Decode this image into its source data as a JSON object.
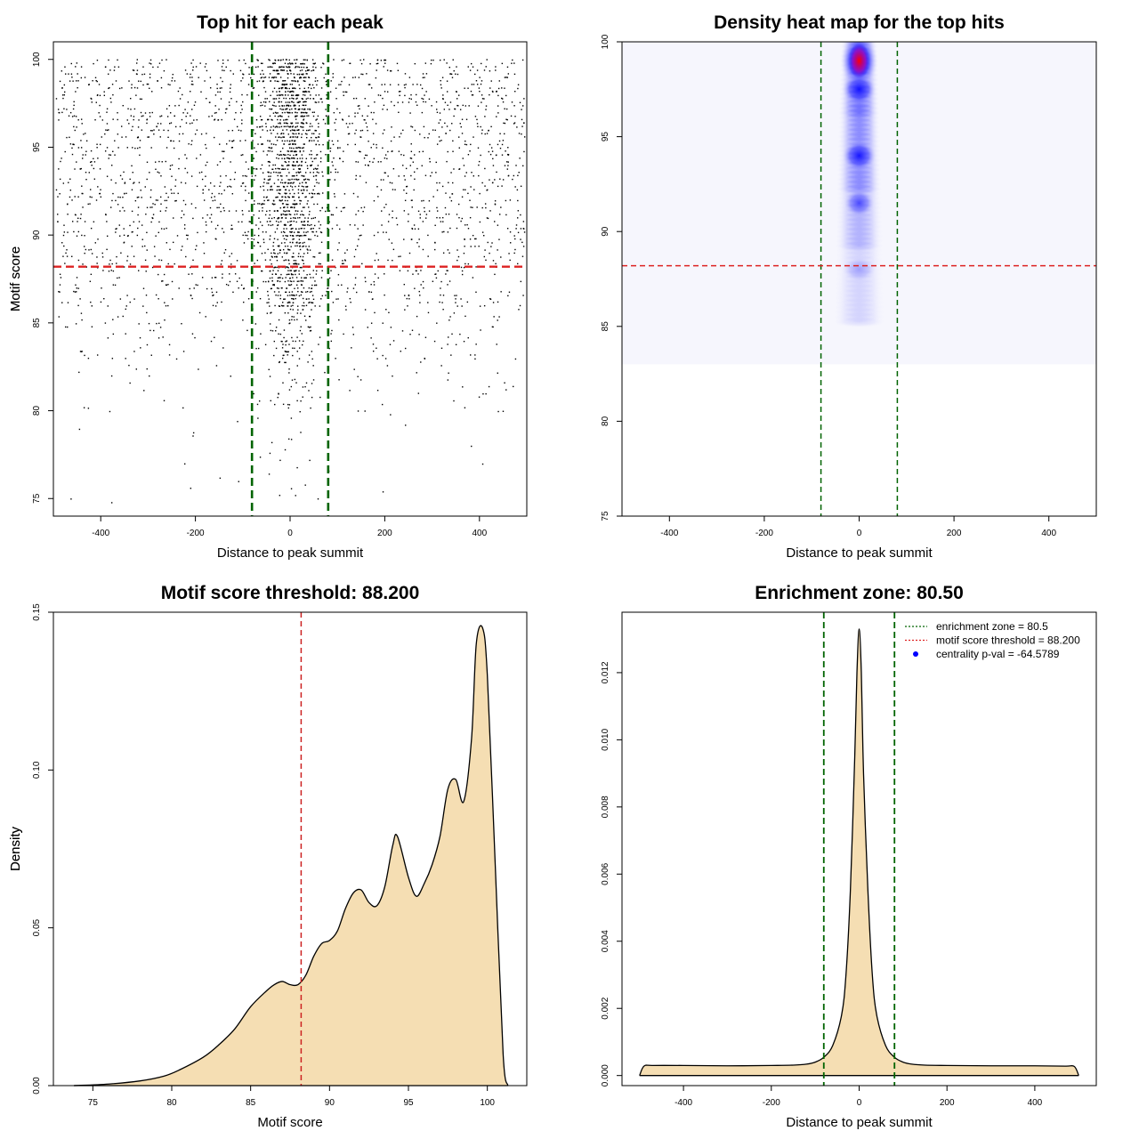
{
  "chart_data": [
    {
      "type": "scatter",
      "title": "Top hit for each peak",
      "xlabel": "Distance to peak summit",
      "ylabel": "Motif score",
      "xlim": [
        -500,
        500
      ],
      "ylim": [
        74,
        101
      ],
      "x_ticks": [
        -400,
        -200,
        0,
        200,
        400
      ],
      "y_ticks": [
        75,
        80,
        85,
        90,
        95,
        100
      ],
      "reference_lines": {
        "vertical": [
          -80.5,
          80.5
        ],
        "horizontal": [
          88.2
        ]
      },
      "points_description": "Thousands of motif hits; dense along score rows near 100, concentrated near distance 0 and thinning below score 85",
      "colors": {
        "points": "#000000",
        "vline": "#006400",
        "hline": "#dd2222"
      }
    },
    {
      "type": "heatmap",
      "title": "Density heat map for the top hits",
      "xlabel": "Distance to peak summit",
      "ylabel": "Motif score",
      "xlim": [
        -500,
        500
      ],
      "ylim": [
        75,
        100
      ],
      "x_ticks": [
        -400,
        -200,
        0,
        200,
        400
      ],
      "y_ticks": [
        75,
        80,
        85,
        90,
        95,
        100
      ],
      "reference_lines": {
        "vertical": [
          -80.5,
          80.5
        ],
        "horizontal": [
          88.2
        ]
      },
      "hotspots": [
        {
          "x": 0,
          "y": 99,
          "level": "max"
        },
        {
          "x": 0,
          "y": 97.5,
          "level": "high"
        },
        {
          "x": 0,
          "y": 94,
          "level": "high"
        },
        {
          "x": 0,
          "y": 91.5,
          "level": "medium"
        },
        {
          "x": 0,
          "y": 88,
          "level": "low"
        }
      ],
      "colors": {
        "low": "#ffffff",
        "mid": "#0000ff",
        "high": "#ff0000"
      }
    },
    {
      "type": "area",
      "title": "Motif score threshold: 88.200",
      "xlabel": "Motif score",
      "ylabel": "Density",
      "xlim": [
        72.5,
        102.5
      ],
      "ylim": [
        0,
        0.15
      ],
      "x_ticks": [
        75,
        80,
        85,
        90,
        95,
        100
      ],
      "y_ticks": [
        0.0,
        0.05,
        0.1,
        0.15
      ],
      "y_tick_labels": [
        "0.00",
        "0.05",
        "0.10",
        "0.15"
      ],
      "x": [
        73.8,
        76,
        78,
        79.5,
        80.5,
        82,
        83,
        84,
        85,
        86,
        86.5,
        87,
        87.5,
        88,
        88.5,
        89,
        89.5,
        90,
        90.5,
        91,
        91.5,
        92,
        92.5,
        93,
        93.5,
        94,
        94.3,
        95,
        95.5,
        96,
        96.5,
        97,
        97.5,
        98,
        98.5,
        99,
        99.3,
        99.7,
        100,
        100.5,
        101,
        101.3
      ],
      "y": [
        0,
        0.0005,
        0.0015,
        0.003,
        0.005,
        0.009,
        0.013,
        0.018,
        0.025,
        0.03,
        0.032,
        0.033,
        0.032,
        0.032,
        0.035,
        0.041,
        0.045,
        0.046,
        0.049,
        0.056,
        0.061,
        0.062,
        0.058,
        0.057,
        0.063,
        0.076,
        0.079,
        0.066,
        0.06,
        0.064,
        0.07,
        0.079,
        0.094,
        0.097,
        0.09,
        0.11,
        0.14,
        0.145,
        0.13,
        0.07,
        0.01,
        0
      ],
      "reference_lines": {
        "vertical": [
          88.2
        ]
      },
      "colors": {
        "fill": "#f5deb3",
        "line": "#000000",
        "vline": "#cc2222"
      }
    },
    {
      "type": "area",
      "title": "Enrichment zone: 80.50",
      "xlabel": "Distance to peak summit",
      "ylabel": "Density",
      "xlim": [
        -540,
        540
      ],
      "ylim": [
        -0.0003,
        0.0138
      ],
      "x_ticks": [
        -400,
        -200,
        0,
        200,
        400
      ],
      "y_ticks": [
        0.0,
        0.002,
        0.004,
        0.006,
        0.008,
        0.01,
        0.012
      ],
      "y_tick_labels": [
        "0.000",
        "0.002",
        "0.004",
        "0.006",
        "0.008",
        "0.010",
        "0.012"
      ],
      "x": [
        -500,
        -490,
        -470,
        -400,
        -300,
        -200,
        -150,
        -120,
        -100,
        -80,
        -60,
        -40,
        -30,
        -20,
        -10,
        -5,
        0,
        5,
        10,
        20,
        30,
        40,
        60,
        80,
        100,
        120,
        150,
        200,
        300,
        400,
        470,
        490,
        500
      ],
      "y": [
        0,
        0.00028,
        0.0003,
        0.0003,
        0.00029,
        0.0003,
        0.00031,
        0.00034,
        0.0004,
        0.00055,
        0.0009,
        0.0018,
        0.003,
        0.0055,
        0.0095,
        0.012,
        0.0133,
        0.012,
        0.009,
        0.0055,
        0.003,
        0.0018,
        0.0009,
        0.00055,
        0.0004,
        0.00034,
        0.00031,
        0.0003,
        0.00029,
        0.00029,
        0.00028,
        0.00027,
        0
      ],
      "reference_lines": {
        "vertical": [
          -80.5,
          80.5
        ]
      },
      "legend": {
        "position": "top-right",
        "entries": [
          {
            "label": "enrichment zone = 80.5",
            "style": "dotted",
            "color": "#006400"
          },
          {
            "label": "motif score threshold = 88.200",
            "style": "dotted",
            "color": "#dd2222"
          },
          {
            "label": "centrality p-val = -64.5789",
            "style": "dot",
            "color": "#0000ff"
          }
        ]
      },
      "colors": {
        "fill": "#f5deb3",
        "line": "#000000",
        "vline": "#006400"
      }
    }
  ]
}
